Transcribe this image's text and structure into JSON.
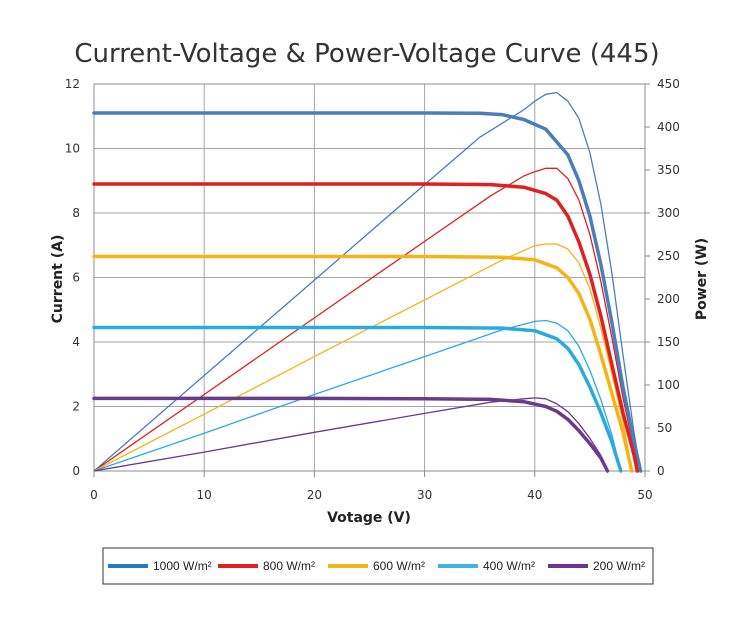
{
  "chart_data": {
    "type": "line",
    "title": "Current-Voltage & Power-Voltage Curve (445)",
    "xlabel": "Votage (V)",
    "ylabel": "Current (A)",
    "y2label": "Power (W)",
    "xlim": [
      0,
      50
    ],
    "ylim": [
      0,
      12
    ],
    "y2lim": [
      0,
      450
    ],
    "xticks": [
      0,
      10,
      20,
      30,
      40,
      50
    ],
    "yticks": [
      0,
      2,
      4,
      6,
      8,
      10,
      12
    ],
    "y2ticks": [
      0,
      50,
      100,
      150,
      200,
      250,
      300,
      350,
      400,
      450
    ],
    "grid": true,
    "legend_position": "bottom",
    "series": [
      {
        "name": "1000 W/m²",
        "color": "#4a7ebb",
        "legend_color": "#1f78c8",
        "iv": [
          [
            0,
            11.1
          ],
          [
            10,
            11.1
          ],
          [
            20,
            11.1
          ],
          [
            30,
            11.1
          ],
          [
            35,
            11.09
          ],
          [
            37,
            11.05
          ],
          [
            39,
            10.9
          ],
          [
            41,
            10.6
          ],
          [
            43,
            9.8
          ],
          [
            44,
            9.0
          ],
          [
            45,
            7.9
          ],
          [
            46,
            6.4
          ],
          [
            47,
            4.6
          ],
          [
            48,
            2.6
          ],
          [
            49,
            0.9
          ],
          [
            49.6,
            0
          ]
        ],
        "pv": [
          [
            0,
            0
          ],
          [
            10,
            111
          ],
          [
            20,
            222
          ],
          [
            30,
            333
          ],
          [
            35,
            388
          ],
          [
            37,
            404
          ],
          [
            39,
            420
          ],
          [
            40,
            430
          ],
          [
            41,
            438
          ],
          [
            42,
            440
          ],
          [
            43,
            430
          ],
          [
            44,
            410
          ],
          [
            45,
            370
          ],
          [
            46,
            310
          ],
          [
            47,
            230
          ],
          [
            48,
            135
          ],
          [
            49,
            45
          ],
          [
            49.6,
            0
          ]
        ]
      },
      {
        "name": "800 W/m²",
        "color": "#e0201e",
        "legend_color": "#e0201e",
        "iv": [
          [
            0,
            8.9
          ],
          [
            10,
            8.9
          ],
          [
            20,
            8.9
          ],
          [
            30,
            8.9
          ],
          [
            36,
            8.88
          ],
          [
            39,
            8.8
          ],
          [
            41,
            8.6
          ],
          [
            42,
            8.4
          ],
          [
            43,
            7.9
          ],
          [
            44,
            7.1
          ],
          [
            45,
            6.1
          ],
          [
            46,
            4.8
          ],
          [
            47,
            3.3
          ],
          [
            48,
            1.8
          ],
          [
            49,
            0.5
          ],
          [
            49.3,
            0
          ]
        ],
        "pv": [
          [
            0,
            0
          ],
          [
            10,
            89
          ],
          [
            20,
            178
          ],
          [
            30,
            267
          ],
          [
            36,
            320
          ],
          [
            39,
            343
          ],
          [
            40,
            348
          ],
          [
            41,
            352
          ],
          [
            42,
            352
          ],
          [
            43,
            340
          ],
          [
            44,
            315
          ],
          [
            45,
            275
          ],
          [
            46,
            220
          ],
          [
            47,
            155
          ],
          [
            48,
            85
          ],
          [
            49,
            25
          ],
          [
            49.3,
            0
          ]
        ]
      },
      {
        "name": "600 W/m²",
        "color": "#f5b316",
        "legend_color": "#f5b316",
        "iv": [
          [
            0,
            6.65
          ],
          [
            10,
            6.65
          ],
          [
            20,
            6.65
          ],
          [
            30,
            6.65
          ],
          [
            37,
            6.63
          ],
          [
            40,
            6.55
          ],
          [
            42,
            6.3
          ],
          [
            43,
            6.0
          ],
          [
            44,
            5.5
          ],
          [
            45,
            4.7
          ],
          [
            46,
            3.6
          ],
          [
            47,
            2.4
          ],
          [
            48,
            1.2
          ],
          [
            48.8,
            0
          ]
        ],
        "pv": [
          [
            0,
            0
          ],
          [
            10,
            66
          ],
          [
            20,
            133
          ],
          [
            30,
            199
          ],
          [
            37,
            245
          ],
          [
            40,
            262
          ],
          [
            41,
            264
          ],
          [
            42,
            264
          ],
          [
            43,
            258
          ],
          [
            44,
            242
          ],
          [
            45,
            212
          ],
          [
            46,
            166
          ],
          [
            47,
            113
          ],
          [
            48,
            58
          ],
          [
            48.8,
            0
          ]
        ]
      },
      {
        "name": "400 W/m²",
        "color": "#29abe2",
        "legend_color": "#3cb4e6",
        "iv": [
          [
            0,
            4.45
          ],
          [
            10,
            4.45
          ],
          [
            20,
            4.45
          ],
          [
            30,
            4.45
          ],
          [
            37,
            4.43
          ],
          [
            40,
            4.35
          ],
          [
            42,
            4.1
          ],
          [
            43,
            3.8
          ],
          [
            44,
            3.3
          ],
          [
            45,
            2.6
          ],
          [
            46,
            1.8
          ],
          [
            47,
            0.9
          ],
          [
            47.8,
            0
          ]
        ],
        "pv": [
          [
            0,
            0
          ],
          [
            10,
            44
          ],
          [
            20,
            89
          ],
          [
            30,
            133
          ],
          [
            37,
            164
          ],
          [
            40,
            174
          ],
          [
            41,
            175
          ],
          [
            42,
            172
          ],
          [
            43,
            163
          ],
          [
            44,
            145
          ],
          [
            45,
            117
          ],
          [
            46,
            83
          ],
          [
            47,
            42
          ],
          [
            47.8,
            0
          ]
        ]
      },
      {
        "name": "200 W/m²",
        "color": "#6a3a8c",
        "legend_color": "#6e3396",
        "iv": [
          [
            0,
            2.25
          ],
          [
            10,
            2.25
          ],
          [
            20,
            2.25
          ],
          [
            30,
            2.24
          ],
          [
            36,
            2.22
          ],
          [
            39,
            2.15
          ],
          [
            41,
            2.0
          ],
          [
            42,
            1.85
          ],
          [
            43,
            1.6
          ],
          [
            44,
            1.25
          ],
          [
            45,
            0.85
          ],
          [
            46,
            0.4
          ],
          [
            46.6,
            0
          ]
        ],
        "pv": [
          [
            0,
            0
          ],
          [
            10,
            22
          ],
          [
            20,
            45
          ],
          [
            30,
            67
          ],
          [
            36,
            80
          ],
          [
            39,
            84
          ],
          [
            40,
            85
          ],
          [
            41,
            84
          ],
          [
            42,
            78
          ],
          [
            43,
            69
          ],
          [
            44,
            55
          ],
          [
            45,
            38
          ],
          [
            46,
            18
          ],
          [
            46.6,
            0
          ]
        ]
      }
    ]
  }
}
